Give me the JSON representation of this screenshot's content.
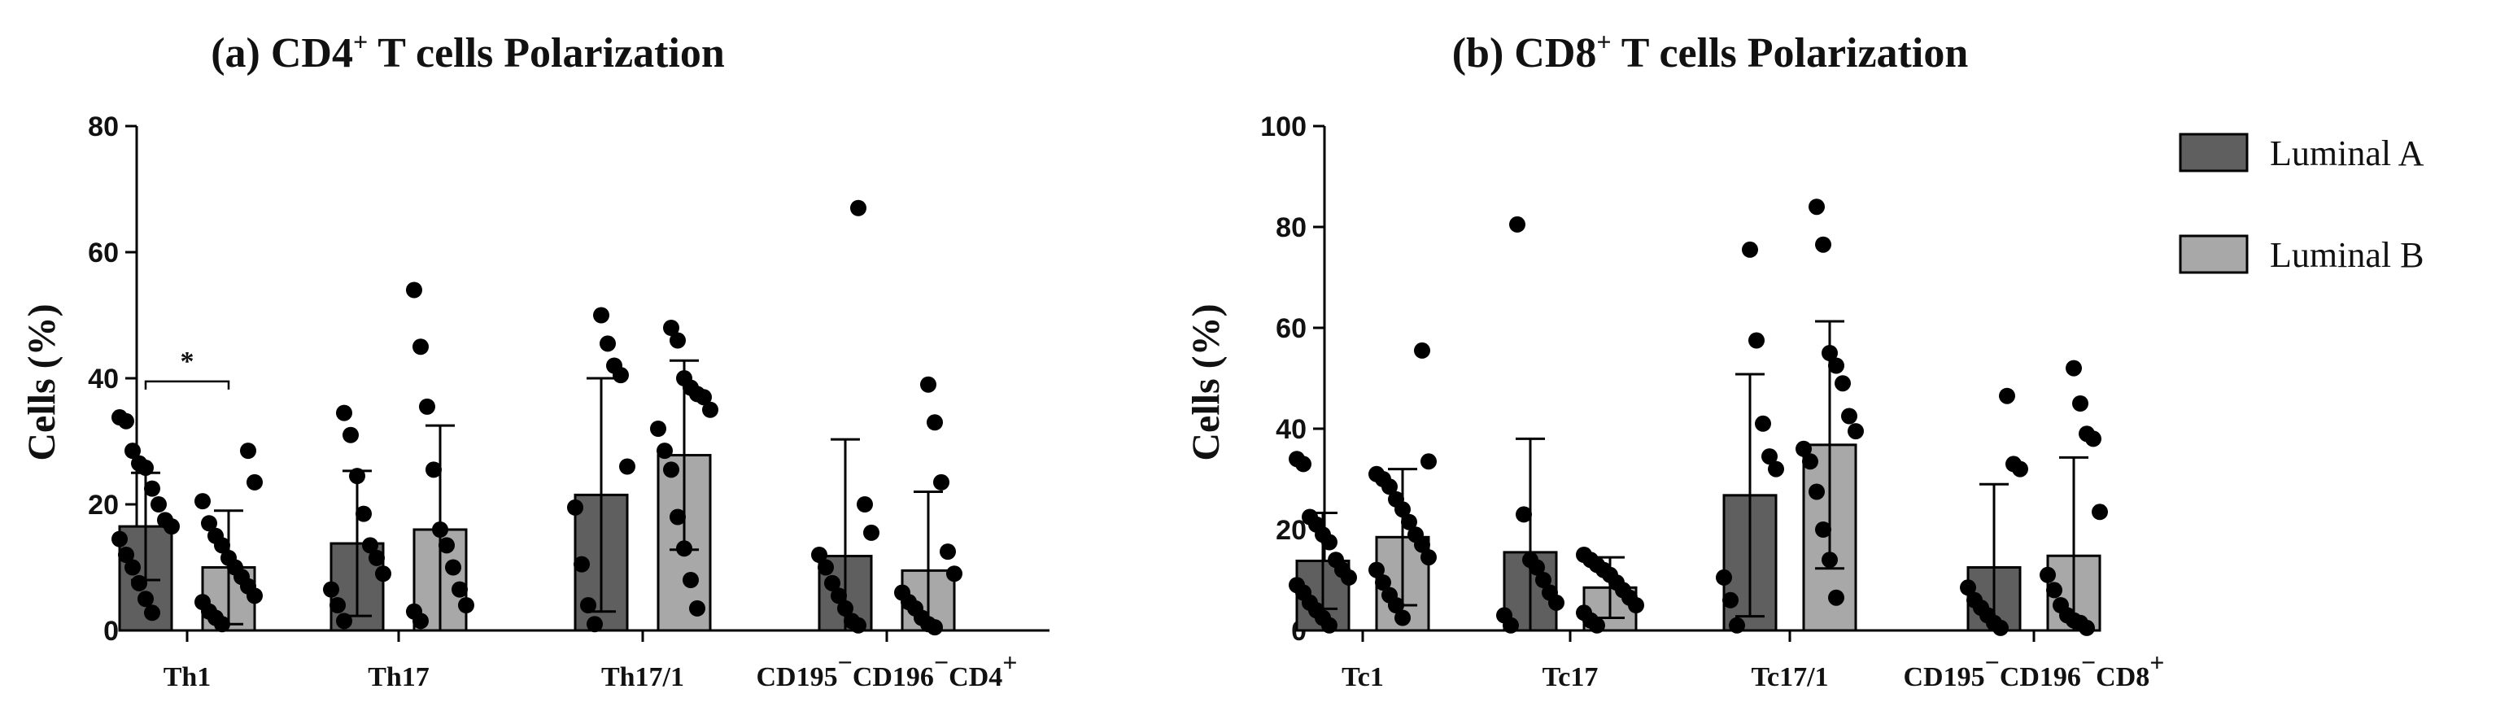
{
  "chart_data": [
    {
      "type": "bar",
      "title": "(a) CD4⁺ T cells Polarization",
      "title_main": "(a) CD4",
      "title_sup": "+",
      "title_rest": " T cells Polarization",
      "ylabel": "Cells (%)",
      "xlabel": "",
      "ylim": [
        0,
        80
      ],
      "yticks": [
        0,
        20,
        40,
        60,
        80
      ],
      "categories": [
        "Th1",
        "Th17",
        "Th17/1",
        "CD195⁻CD196⁻CD4⁺"
      ],
      "category_parts": [
        [
          [
            "Th1",
            ""
          ]
        ],
        [
          [
            "Th17",
            ""
          ]
        ],
        [
          [
            "Th17/1",
            ""
          ]
        ],
        [
          [
            "CD195",
            "−"
          ],
          [
            "CD196",
            "−"
          ],
          [
            "CD4",
            "+"
          ]
        ]
      ],
      "series": [
        {
          "name": "Luminal A",
          "color": "#5f5f5f",
          "values": [
            16.5,
            13.8,
            21.5,
            11.8
          ],
          "errors": [
            8.5,
            11.5,
            18.5,
            18.5
          ],
          "points": [
            [
              33.8,
              33.2,
              28.5,
              26.5,
              25.8,
              22.5,
              20.0,
              17.5,
              16.5,
              14.5,
              12.0,
              10.0,
              7.5,
              5.0,
              2.8
            ],
            [
              34.5,
              31.0,
              24.5,
              18.5,
              13.5,
              11.5,
              9.0,
              6.5,
              4.0,
              1.5
            ],
            [
              50.0,
              45.5,
              42.0,
              40.5,
              26.0,
              19.5,
              10.5,
              4.0,
              1.0
            ],
            [
              67.0,
              20.0,
              15.5,
              12.0,
              10.0,
              7.5,
              5.5,
              3.5,
              1.5,
              0.8
            ]
          ]
        },
        {
          "name": "Luminal B",
          "color": "#a8a8a8",
          "values": [
            10.0,
            16.0,
            27.8,
            9.5
          ],
          "errors": [
            9.0,
            16.5,
            15.0,
            12.5
          ],
          "points": [
            [
              28.5,
              23.5,
              20.5,
              17.0,
              15.0,
              13.5,
              11.5,
              10.0,
              8.5,
              7.0,
              5.5,
              4.5,
              3.0,
              2.0,
              1.0
            ],
            [
              54.0,
              45.0,
              35.5,
              25.5,
              16.0,
              13.5,
              10.0,
              6.5,
              4.0,
              3.0,
              1.5
            ],
            [
              48.0,
              46.0,
              40.0,
              38.5,
              37.5,
              37.0,
              35.0,
              32.0,
              28.5,
              25.5,
              18.0,
              13.0,
              8.0,
              3.5
            ],
            [
              39.0,
              33.0,
              23.5,
              12.5,
              9.0,
              6.0,
              4.5,
              3.5,
              2.0,
              1.0,
              0.5
            ]
          ]
        }
      ],
      "annotations": [
        {
          "text": "*",
          "between": [
            "Luminal A",
            "Luminal B"
          ],
          "category": "Th1",
          "y": 39.5
        }
      ]
    },
    {
      "type": "bar",
      "title": "(b) CD8⁺ T cells Polarization",
      "title_main": "(b) CD8",
      "title_sup": "+",
      "title_rest": " T cells Polarization",
      "ylabel": "Cells (%)",
      "xlabel": "",
      "ylim": [
        0,
        100
      ],
      "yticks": [
        0,
        20,
        40,
        60,
        80,
        100
      ],
      "categories": [
        "Tc1",
        "Tc17",
        "Tc17/1",
        "CD195⁻CD196⁻CD8⁺"
      ],
      "category_parts": [
        [
          [
            "Tc1",
            ""
          ]
        ],
        [
          [
            "Tc17",
            ""
          ]
        ],
        [
          [
            "Tc17/1",
            ""
          ]
        ],
        [
          [
            "CD195",
            "−"
          ],
          [
            "CD196",
            "−"
          ],
          [
            "CD8",
            "+"
          ]
        ]
      ],
      "series": [
        {
          "name": "Luminal A",
          "color": "#5f5f5f",
          "values": [
            13.8,
            15.5,
            26.8,
            12.5
          ],
          "errors": [
            9.5,
            22.5,
            24.0,
            16.5
          ],
          "points": [
            [
              34.0,
              33.0,
              22.5,
              21.0,
              19.0,
              17.5,
              14.0,
              12.0,
              10.5,
              9.0,
              7.5,
              5.5,
              4.0,
              2.5,
              1.0
            ],
            [
              80.5,
              23.0,
              14.0,
              12.5,
              10.0,
              7.5,
              5.5,
              3.0,
              1.0
            ],
            [
              75.5,
              57.5,
              41.0,
              34.5,
              32.0,
              10.5,
              6.0,
              1.0
            ],
            [
              46.5,
              33.0,
              32.0,
              8.5,
              6.0,
              4.5,
              3.0,
              1.5,
              0.5
            ]
          ]
        },
        {
          "name": "Luminal B",
          "color": "#a8a8a8",
          "values": [
            18.5,
            8.5,
            36.8,
            14.8
          ],
          "errors": [
            13.5,
            6.0,
            24.5,
            19.5
          ],
          "points": [
            [
              55.5,
              33.5,
              31.0,
              30.0,
              28.5,
              26.0,
              24.0,
              21.5,
              19.0,
              17.0,
              14.5,
              12.0,
              9.5,
              7.0,
              5.0,
              2.5
            ],
            [
              15.0,
              14.0,
              13.0,
              12.0,
              11.0,
              9.5,
              8.0,
              6.5,
              5.0,
              3.5,
              2.0,
              1.0
            ],
            [
              84.0,
              76.5,
              55.0,
              52.5,
              49.0,
              42.5,
              39.5,
              36.0,
              33.5,
              27.5,
              20.0,
              14.0,
              6.5
            ],
            [
              52.0,
              45.0,
              39.0,
              38.0,
              23.5,
              11.0,
              8.0,
              5.0,
              3.0,
              2.0,
              1.5,
              0.5
            ]
          ]
        }
      ]
    }
  ],
  "legend": {
    "items": [
      {
        "label": "Luminal A",
        "color": "#5f5f5f"
      },
      {
        "label": "Luminal B",
        "color": "#a8a8a8"
      }
    ]
  }
}
